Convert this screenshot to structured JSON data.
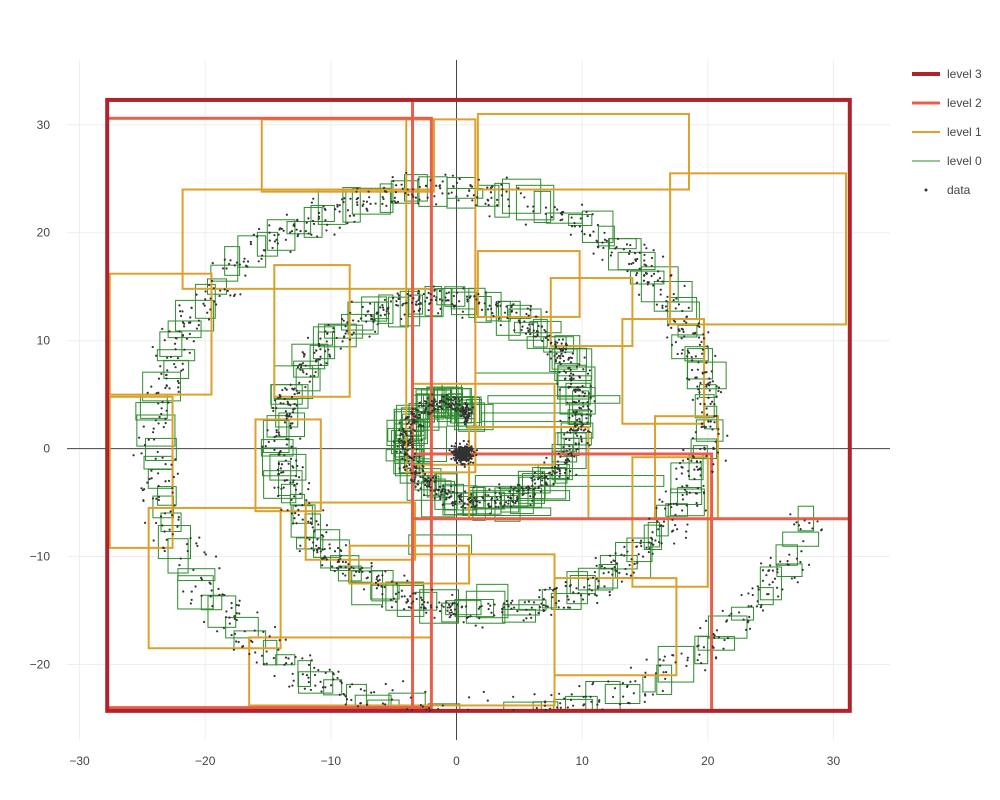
{
  "chart_data": {
    "type": "scatter",
    "title": "",
    "xlabel": "",
    "ylabel": "",
    "xlim": [
      -31,
      34.5
    ],
    "ylim": [
      -27,
      36
    ],
    "x_ticks": [
      -30,
      -20,
      -10,
      0,
      10,
      20,
      30
    ],
    "y_ticks": [
      -20,
      -10,
      0,
      10,
      20,
      30
    ],
    "grid": true,
    "zero_lines": true,
    "legend_position": "top-right",
    "data_description": "points along a spiral with a dense core near the origin",
    "colors": {
      "level3": "#b2222a",
      "level2": "#e8604c",
      "level1": "#dba12b",
      "level0": "#2e8b2e",
      "data": "#333333",
      "grid": "#eeeeee",
      "zeroline": "#444444"
    },
    "series": [
      {
        "name": "level 3",
        "type": "rect",
        "rects": [
          [
            -27.8,
            -24.3,
            31.3,
            32.3
          ]
        ]
      },
      {
        "name": "level 2",
        "type": "rect",
        "rects": [
          [
            -27.8,
            -24.0,
            -2.0,
            30.6
          ],
          [
            -3.5,
            -6.5,
            31.3,
            32.3
          ],
          [
            -3.5,
            -24.3,
            20.3,
            -0.5
          ]
        ]
      },
      {
        "name": "level 1",
        "type": "rect",
        "rects": [
          [
            -15.5,
            23.8,
            -1.8,
            30.5
          ],
          [
            -21.8,
            14.8,
            -2.0,
            24.0
          ],
          [
            -27.6,
            5.0,
            -19.5,
            16.2
          ],
          [
            -27.6,
            -9.2,
            -22.6,
            4.8
          ],
          [
            -24.5,
            -18.5,
            -14.0,
            -5.5
          ],
          [
            -16.5,
            -23.8,
            -2.0,
            -17.5
          ],
          [
            -3.5,
            -23.8,
            7.8,
            -9.8
          ],
          [
            7.8,
            -21.0,
            17.5,
            -12.0
          ],
          [
            14.0,
            -12.8,
            20.0,
            -0.8
          ],
          [
            15.8,
            -6.5,
            20.8,
            3.0
          ],
          [
            13.2,
            2.3,
            19.7,
            12.0
          ],
          [
            7.5,
            9.5,
            14.0,
            15.8
          ],
          [
            1.7,
            12.2,
            9.8,
            18.3
          ],
          [
            1.7,
            24.0,
            18.5,
            31.0
          ],
          [
            17.0,
            11.5,
            31.0,
            25.5
          ],
          [
            -14.5,
            4.8,
            -8.5,
            17.0
          ],
          [
            -16.0,
            -5.8,
            -10.8,
            2.7
          ],
          [
            -12.0,
            -10.3,
            -3.3,
            -5.0
          ],
          [
            -8.5,
            -12.5,
            1.0,
            -9.0
          ],
          [
            -3.5,
            -1.5,
            7.8,
            6.0
          ],
          [
            1.0,
            -6.5,
            10.5,
            2.0
          ],
          [
            -4.0,
            -2.2,
            1.5,
            30.5
          ]
        ]
      },
      {
        "name": "level 0",
        "type": "rect",
        "rects": [],
        "generated_along_spiral": true
      },
      {
        "name": "data",
        "type": "scatter",
        "x": [],
        "y": [],
        "generated_along_spiral": true
      }
    ]
  }
}
